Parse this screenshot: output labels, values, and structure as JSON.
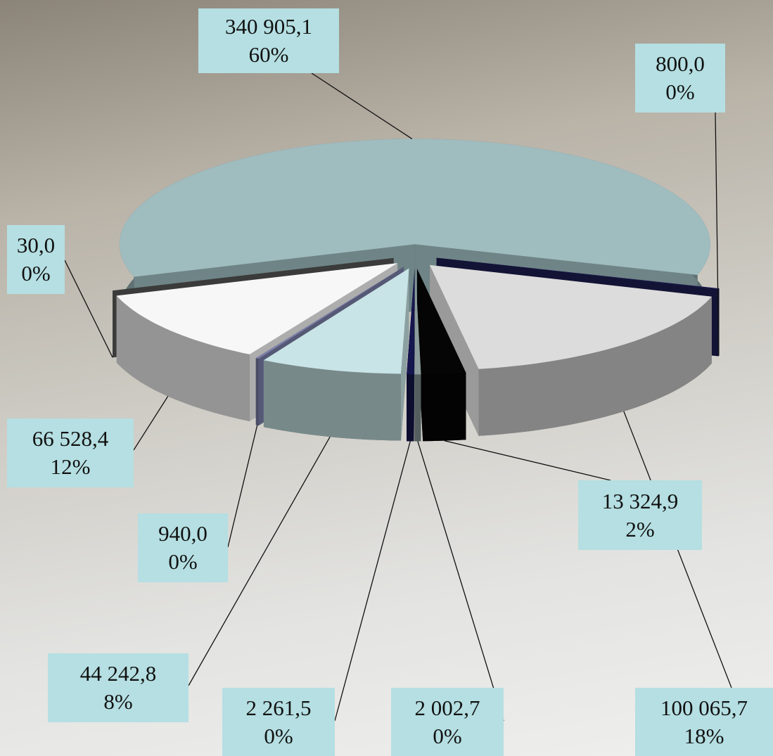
{
  "chart_data": {
    "type": "pie",
    "values": [
      340905.1,
      800.0,
      100065.7,
      13324.9,
      2002.7,
      2261.5,
      44242.8,
      940.0,
      66528.4,
      30.0
    ],
    "value_labels": [
      "340 905,1",
      "800,0",
      "100 065,7",
      "13 324,9",
      "2 002,7",
      "2 261,5",
      "44 242,8",
      "940,0",
      "66 528,4",
      "30,0"
    ],
    "percents": [
      60,
      0,
      18,
      2,
      0,
      0,
      8,
      0,
      12,
      0
    ],
    "percent_labels": [
      "60%",
      "0%",
      "18%",
      "2%",
      "0%",
      "0%",
      "8%",
      "0%",
      "12%",
      "0%"
    ],
    "colors": [
      "#9fbcbf",
      "#1b1b4d",
      "#dcdcdc",
      "#050505",
      "#8c9c9c",
      "#15154f",
      "#c8e4e6",
      "#7b7fa8",
      "#f7f7f7",
      "#555555"
    ]
  }
}
